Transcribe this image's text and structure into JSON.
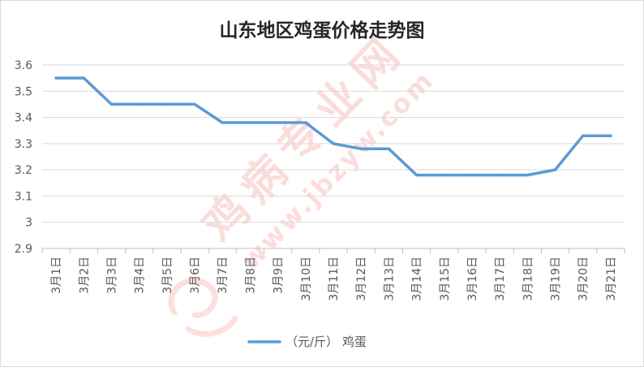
{
  "chart_data": {
    "type": "line",
    "title": "山东地区鸡蛋价格走势图",
    "categories": [
      "3月1日",
      "3月2日",
      "3月3日",
      "3月4日",
      "3月5日",
      "3月6日",
      "3月7日",
      "3月8日",
      "3月9日",
      "3月10日",
      "3月11日",
      "3月12日",
      "3月13日",
      "3月14日",
      "3月15日",
      "3月16日",
      "3月17日",
      "3月18日",
      "3月19日",
      "3月20日",
      "3月21日"
    ],
    "series": [
      {
        "name": "（元/斤） 鸡蛋",
        "values": [
          3.55,
          3.55,
          3.45,
          3.45,
          3.45,
          3.45,
          3.38,
          3.38,
          3.38,
          3.38,
          3.3,
          3.28,
          3.28,
          3.18,
          3.18,
          3.18,
          3.18,
          3.18,
          3.2,
          3.33,
          3.33
        ],
        "color": "#5b9bd5"
      }
    ],
    "xlabel": "",
    "ylabel": "",
    "ylim": [
      2.9,
      3.6
    ],
    "yticks": [
      2.9,
      3,
      3.1,
      3.2,
      3.3,
      3.4,
      3.5,
      3.6
    ],
    "grid": true,
    "legend": "bottom"
  },
  "watermark": {
    "text": "鸡病专业网",
    "site": "www.jbzyw.com",
    "color": "#e8534a"
  },
  "colors": {
    "gridline": "#d9d9d9",
    "axis": "#bfbfbf",
    "border": "#d9d9d9"
  }
}
